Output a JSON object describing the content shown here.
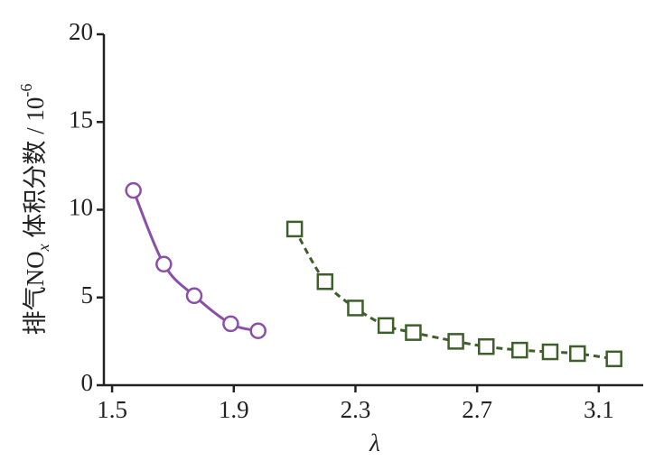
{
  "chart_data": {
    "type": "line",
    "xlabel": "λ",
    "ylabel": {
      "main": "排气NO",
      "sub": "x",
      "rest": " 体积分数 / 10",
      "sup": "-6"
    },
    "xlim": [
      1.473,
      3.246
    ],
    "xticks": [
      1.5,
      1.9,
      2.3,
      2.7,
      3.1
    ],
    "ylim": [
      0,
      20
    ],
    "yticks": [
      0,
      5,
      10,
      15,
      20
    ],
    "series": [
      {
        "color": "#8a4fa8",
        "marker": "circle",
        "linestyle": "solid",
        "x": [
          1.57,
          1.67,
          1.77,
          1.89,
          1.98
        ],
        "values": [
          11.1,
          6.9,
          5.1,
          3.5,
          3.1
        ]
      },
      {
        "color": "#3e5e2c",
        "marker": "square",
        "linestyle": "dashed",
        "x": [
          2.1,
          2.2,
          2.3,
          2.4,
          2.49,
          2.63,
          2.73,
          2.84,
          2.94,
          3.03,
          3.15
        ],
        "values": [
          8.9,
          5.9,
          4.4,
          3.4,
          3.0,
          2.5,
          2.2,
          2.0,
          1.9,
          1.8,
          1.5
        ]
      }
    ]
  }
}
